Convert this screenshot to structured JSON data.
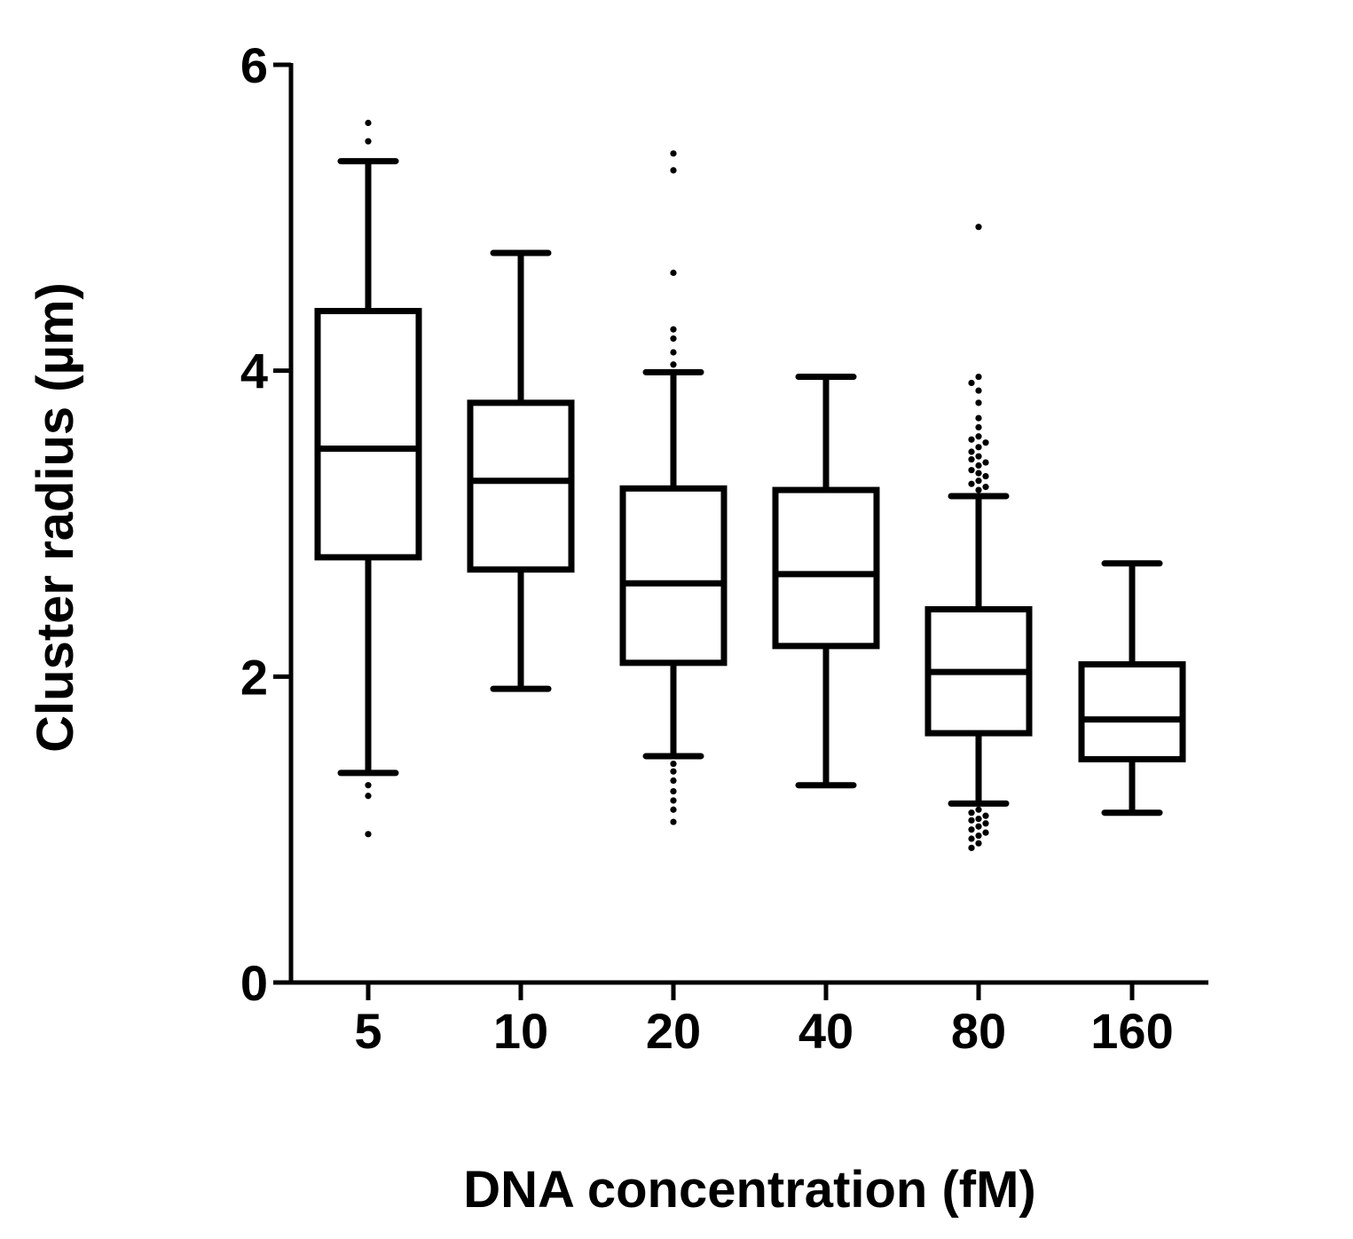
{
  "chart_data": {
    "type": "box",
    "categories": [
      "5",
      "10",
      "20",
      "40",
      "80",
      "160"
    ],
    "xlabel": "DNA concentration (fM)",
    "ylabel": "Cluster radius (µm)",
    "ylim": [
      0,
      6
    ],
    "yticks": [
      0,
      2,
      4,
      6
    ],
    "boxes": [
      {
        "category": "5",
        "whisker_low": 1.37,
        "q1": 2.78,
        "median": 3.49,
        "q3": 4.39,
        "whisker_high": 5.37,
        "outliers": [
          5.62,
          5.5,
          1.29,
          1.22,
          0.97
        ]
      },
      {
        "category": "10",
        "whisker_low": 1.92,
        "q1": 2.7,
        "median": 3.28,
        "q3": 3.79,
        "whisker_high": 4.77,
        "outliers": []
      },
      {
        "category": "20",
        "whisker_low": 1.48,
        "q1": 2.09,
        "median": 2.61,
        "q3": 3.23,
        "whisker_high": 3.99,
        "outliers": [
          5.42,
          5.31,
          4.64,
          4.27,
          4.21,
          4.12,
          4.04,
          1.43,
          1.38,
          1.32,
          1.25,
          1.19,
          1.13,
          1.05
        ]
      },
      {
        "category": "40",
        "whisker_low": 1.29,
        "q1": 2.2,
        "median": 2.67,
        "q3": 3.22,
        "whisker_high": 3.96,
        "outliers": []
      },
      {
        "category": "80",
        "whisker_low": 1.17,
        "q1": 1.63,
        "median": 2.03,
        "q3": 2.44,
        "whisker_high": 3.18,
        "outliers": [
          4.94,
          3.96,
          3.92,
          3.87,
          3.79,
          3.69,
          3.63,
          3.57,
          3.55,
          3.53,
          3.5,
          3.47,
          3.44,
          3.42,
          3.4,
          3.38,
          3.35,
          3.33,
          3.31,
          3.28,
          3.26,
          3.24,
          3.22,
          1.13,
          1.11,
          1.09,
          1.07,
          1.06,
          1.04,
          1.02,
          1.0,
          0.98,
          0.96,
          0.94,
          0.91,
          0.88
        ]
      },
      {
        "category": "160",
        "whisker_low": 1.11,
        "q1": 1.46,
        "median": 1.72,
        "q3": 2.08,
        "whisker_high": 2.74,
        "outliers": []
      }
    ]
  }
}
